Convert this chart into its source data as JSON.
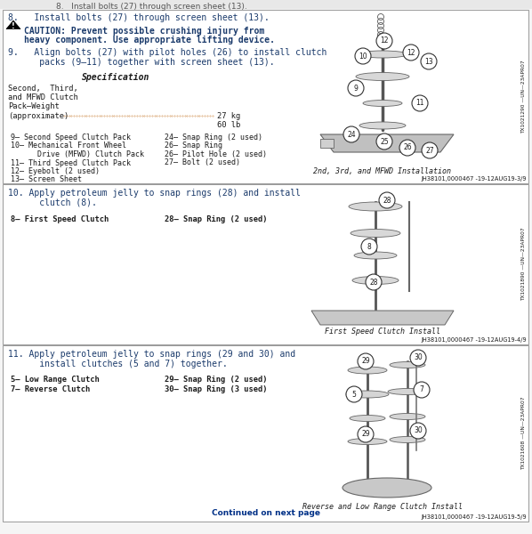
{
  "bg_color": "#f5f5f5",
  "box_bg": "#ffffff",
  "border_color": "#aaaaaa",
  "text_color": "#1a1a1a",
  "blue_color": "#003087",
  "dark_blue": "#1a3a6b",
  "section1": {
    "step8": "8.   Install bolts (27) through screen sheet (13).",
    "caution_text1": "CAUTION: Prevent possible crushing injury from",
    "caution_text2": "heavy component. Use appropriate lifting device.",
    "step9_1": "9.   Align bolts (27) with pilot holes (26) to install clutch",
    "step9_2": "      packs (9—11) together with screen sheet (13).",
    "spec_title": "Specification",
    "spec_label1": "Second,  Third,",
    "spec_label2": "and MFWD Clutch",
    "spec_label3": "Pack—Weight",
    "spec_line": "(approximate)",
    "spec_val1": "27 kg",
    "spec_val2": "60 lb",
    "parts": [
      [
        "9— Second Speed Clutch Pack",
        "24— Snap Ring (2 used)"
      ],
      [
        "10— Mechanical Front Wheel",
        "26— Snap Ring"
      ],
      [
        "      Drive (MFWD) Clutch Pack",
        "26— Pilot Hole (2 used)"
      ],
      [
        "11— Third Speed Clutch Pack",
        "27— Bolt (2 used)"
      ],
      [
        "12— Eyebolt (2 used)",
        ""
      ],
      [
        "13— Screen Sheet",
        ""
      ]
    ],
    "fig_caption": "2nd, 3rd, and MFWD Installation",
    "side_label": "TX1021290 —UN—23APR07",
    "ref": "JH38101,0000467 -19-12AUG19-3/9",
    "diagram_parts": [
      [
        430,
        185,
        13,
        "12"
      ],
      [
        410,
        155,
        12,
        "10"
      ],
      [
        455,
        160,
        13,
        "12"
      ],
      [
        475,
        155,
        11,
        "13"
      ],
      [
        400,
        130,
        13,
        "9"
      ],
      [
        470,
        125,
        12,
        "11"
      ],
      [
        395,
        90,
        13,
        "24"
      ],
      [
        430,
        88,
        11,
        "25"
      ],
      [
        455,
        82,
        11,
        "26"
      ],
      [
        478,
        78,
        11,
        "27"
      ]
    ]
  },
  "section2": {
    "step10_1": "10. Apply petroleum jelly to snap rings (28) and install",
    "step10_2": "      clutch (8).",
    "part1": "8— First Speed Clutch",
    "part2": "28— Snap Ring (2 used)",
    "fig_caption": "First Speed Clutch Install",
    "side_label": "TX1021890 —UN—23APR07",
    "ref": "JH38101,0000467 -19-12AUG19-4/9",
    "diagram_parts": [
      [
        430,
        370,
        13,
        "28"
      ],
      [
        415,
        340,
        12,
        "8"
      ],
      [
        418,
        305,
        13,
        "28"
      ]
    ]
  },
  "section3": {
    "step11_1": "11. Apply petroleum jelly to snap rings (29 and 30) and",
    "step11_2": "      install clutches (5 and 7) together.",
    "parts": [
      [
        "5— Low Range Clutch",
        "29— Snap Ring (2 used)"
      ],
      [
        "7— Reverse Clutch",
        "30— Snap Ring (3 used)"
      ]
    ],
    "fig_caption": "Reverse and Low Range Clutch Install",
    "side_label": "TX1021608 —UN—23APR07",
    "ref": "JH38101,0000467 -19-12AUG19-5/9",
    "continued": "Continued on next page",
    "diagram_parts": [
      [
        415,
        163,
        12,
        "29"
      ],
      [
        458,
        168,
        12,
        "30"
      ],
      [
        400,
        143,
        12,
        "5"
      ],
      [
        465,
        142,
        11,
        "7"
      ],
      [
        415,
        112,
        12,
        "29"
      ],
      [
        458,
        108,
        12,
        "30"
      ]
    ]
  }
}
